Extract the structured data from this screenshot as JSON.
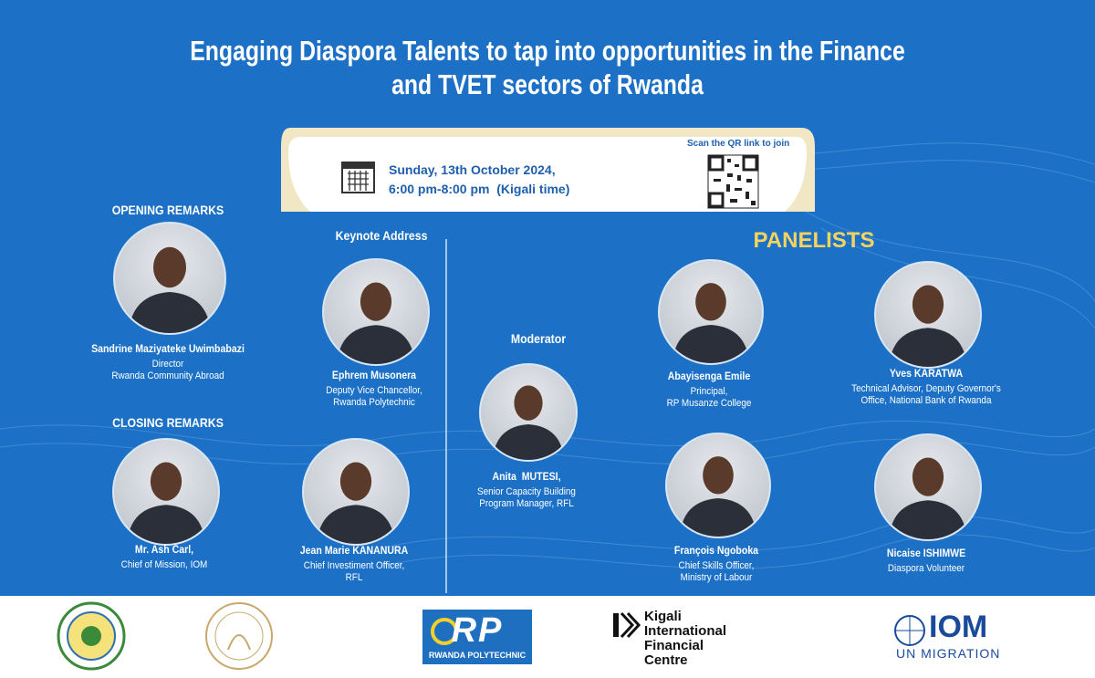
{
  "header": {
    "title_lines": [
      "Engaging Diaspora Talents to tap into opportunities in the Finance",
      "and TVET sectors of Rwanda"
    ]
  },
  "event": {
    "date": "Sunday, 13th October 2024,",
    "time": "6:00 pm-8:00 pm  (Kigali time)",
    "qr_note": "Scan the QR link to join"
  },
  "sections": {
    "opening": "OPENING REMARKS",
    "closing": "CLOSING REMARKS",
    "keynote": "Keynote Address",
    "moderator": "Moderator",
    "panelists": "PANELISTS"
  },
  "speakers": [
    {
      "name": "Sandrine Maziyateke Uwimbabazi",
      "role": [
        "Director",
        "Rwanda Community Abroad"
      ]
    },
    {
      "name": "Ephrem Musonera",
      "role": [
        "Deputy Vice Chancellor,",
        "Rwanda Polytechnic"
      ]
    },
    {
      "name": "Mr. Ash Carl,",
      "role": [
        "Chief of Mission, IOM"
      ]
    },
    {
      "name": "Jean Marie KANANURA",
      "role": [
        "Chief Investiment Officer,",
        "RFL"
      ]
    },
    {
      "name": "Anita  MUTESI,",
      "role": [
        "Senior Capacity Building",
        "Program Manager, RFL"
      ]
    },
    {
      "name": "Abayisenga Emile",
      "role": [
        "Principal,",
        "RP Musanze College"
      ]
    },
    {
      "name": "Yves KARATWA",
      "role": [
        "Technical Advisor, Deputy Governor's",
        "Office, National Bank of Rwanda"
      ]
    },
    {
      "name": "François Ngoboka",
      "role": [
        "Chief Skills Officer,",
        "Ministry of Labour"
      ]
    },
    {
      "name": "Nicaise ISHIMWE",
      "role": [
        "Diaspora Volunteer"
      ]
    }
  ],
  "logos": {
    "rp_mark": "RP",
    "rp_name": "RWANDA POLYTECHNIC",
    "kifc": [
      "Kigali",
      "International",
      "Financial",
      "Centre"
    ],
    "iom": "IOM",
    "iom_sub": "UN MIGRATION"
  }
}
